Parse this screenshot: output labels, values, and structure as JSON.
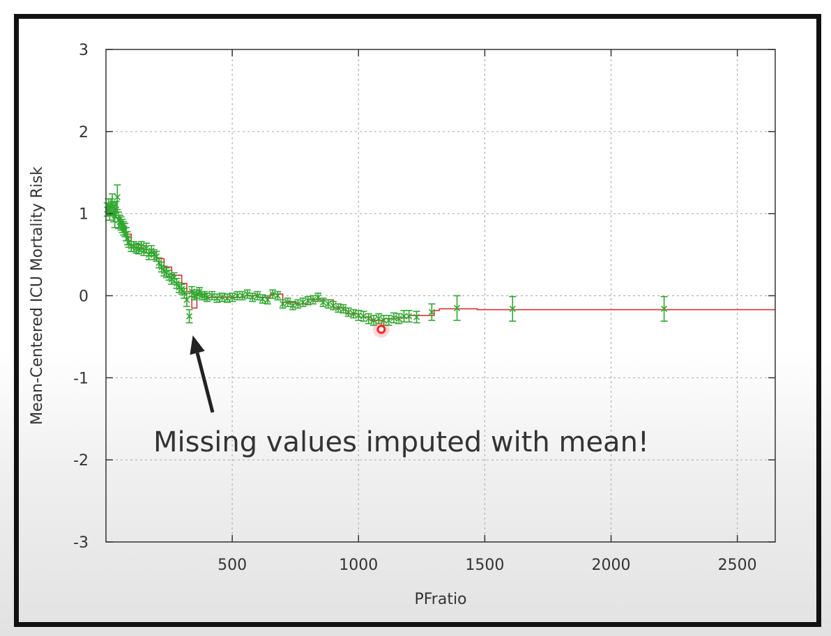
{
  "chart_data": {
    "type": "line",
    "title": "",
    "xlabel": "PFratio",
    "ylabel": "Mean-Centered ICU Mortality Risk",
    "xlim": [
      0,
      2650
    ],
    "ylim": [
      -3,
      3
    ],
    "x_ticks": [
      500,
      1000,
      1500,
      2000,
      2500
    ],
    "y_ticks": [
      3,
      2,
      1,
      0,
      -1,
      -2,
      -3
    ],
    "grid": true,
    "legend": "none",
    "colors": {
      "line": "#e03030",
      "points": "#2ea82e",
      "highlight": "#ff2020",
      "grid": "#b0b0b0",
      "axis": "#333333",
      "arrow": "#222222"
    },
    "series": [
      {
        "type": "line",
        "step": true,
        "x": [
          0,
          20,
          40,
          60,
          80,
          100,
          130,
          160,
          200,
          230,
          260,
          300,
          320,
          340,
          360,
          400,
          450,
          500,
          550,
          600,
          650,
          700,
          750,
          800,
          850,
          900,
          950,
          1000,
          1050,
          1080,
          1100,
          1150,
          1200,
          1250,
          1300,
          1320,
          1350,
          1400,
          1450,
          1470,
          1500,
          1600,
          1700,
          2000,
          2200,
          2400,
          2650
        ],
        "y": [
          1.05,
          1.02,
          0.95,
          0.85,
          0.75,
          0.62,
          0.57,
          0.52,
          0.45,
          0.35,
          0.25,
          0.15,
          0.05,
          -0.15,
          0.02,
          -0.02,
          -0.02,
          -0.02,
          0.0,
          -0.02,
          0.02,
          -0.08,
          -0.1,
          -0.05,
          -0.05,
          -0.15,
          -0.22,
          -0.26,
          -0.3,
          -0.3,
          -0.28,
          -0.27,
          -0.24,
          -0.24,
          -0.18,
          -0.16,
          -0.16,
          -0.16,
          -0.16,
          -0.17,
          -0.17,
          -0.17,
          -0.17,
          -0.17,
          -0.17,
          -0.17,
          -0.17
        ]
      },
      {
        "type": "errorbar",
        "x": [
          5,
          10,
          15,
          20,
          25,
          30,
          35,
          40,
          45,
          50,
          55,
          60,
          65,
          70,
          75,
          80,
          85,
          90,
          100,
          110,
          120,
          130,
          140,
          150,
          160,
          170,
          180,
          190,
          200,
          210,
          220,
          230,
          240,
          250,
          260,
          270,
          280,
          290,
          300,
          310,
          320,
          330,
          340,
          350,
          360,
          370,
          380,
          390,
          400,
          420,
          440,
          460,
          480,
          500,
          520,
          540,
          560,
          580,
          600,
          620,
          640,
          660,
          680,
          700,
          720,
          740,
          760,
          780,
          800,
          820,
          840,
          860,
          880,
          900,
          920,
          940,
          960,
          980,
          1000,
          1020,
          1040,
          1060,
          1080,
          1100,
          1120,
          1140,
          1160,
          1180,
          1200,
          1230,
          1290,
          1390,
          1610,
          2210
        ],
        "y": [
          1.05,
          1.1,
          1.0,
          1.08,
          1.12,
          1.0,
          0.98,
          1.05,
          1.2,
          0.92,
          0.9,
          0.88,
          0.85,
          0.82,
          0.8,
          0.75,
          0.7,
          0.65,
          0.6,
          0.6,
          0.58,
          0.57,
          0.6,
          0.55,
          0.58,
          0.5,
          0.55,
          0.5,
          0.48,
          0.4,
          0.35,
          0.3,
          0.28,
          0.25,
          0.2,
          0.22,
          0.15,
          0.1,
          0.08,
          0.03,
          -0.05,
          -0.25,
          0.05,
          0.0,
          0.02,
          0.05,
          0.0,
          0.0,
          -0.02,
          0.0,
          -0.03,
          -0.02,
          -0.03,
          -0.02,
          0.0,
          0.0,
          0.02,
          -0.02,
          0.0,
          -0.04,
          -0.05,
          0.02,
          0.0,
          -0.1,
          -0.08,
          -0.12,
          -0.1,
          -0.08,
          -0.06,
          -0.05,
          -0.02,
          -0.08,
          -0.1,
          -0.12,
          -0.15,
          -0.16,
          -0.2,
          -0.22,
          -0.24,
          -0.25,
          -0.28,
          -0.3,
          -0.28,
          -0.3,
          -0.3,
          -0.27,
          -0.28,
          -0.25,
          -0.25,
          -0.26,
          -0.2,
          -0.15,
          -0.16,
          -0.16
        ],
        "err": [
          0.08,
          0.08,
          0.08,
          0.1,
          0.12,
          0.1,
          0.15,
          0.1,
          0.15,
          0.1,
          0.08,
          0.08,
          0.08,
          0.08,
          0.08,
          0.08,
          0.08,
          0.06,
          0.06,
          0.06,
          0.06,
          0.06,
          0.06,
          0.06,
          0.06,
          0.06,
          0.06,
          0.06,
          0.06,
          0.06,
          0.06,
          0.06,
          0.06,
          0.06,
          0.06,
          0.06,
          0.06,
          0.06,
          0.06,
          0.06,
          0.08,
          0.08,
          0.06,
          0.05,
          0.05,
          0.05,
          0.05,
          0.05,
          0.05,
          0.05,
          0.05,
          0.05,
          0.05,
          0.05,
          0.05,
          0.05,
          0.05,
          0.05,
          0.05,
          0.05,
          0.05,
          0.05,
          0.05,
          0.05,
          0.05,
          0.05,
          0.05,
          0.05,
          0.05,
          0.05,
          0.05,
          0.05,
          0.05,
          0.05,
          0.05,
          0.05,
          0.05,
          0.05,
          0.06,
          0.06,
          0.06,
          0.06,
          0.06,
          0.06,
          0.06,
          0.06,
          0.06,
          0.07,
          0.07,
          0.07,
          0.1,
          0.15,
          0.15,
          0.15
        ]
      }
    ],
    "highlight_point": {
      "x": 1090,
      "y": -0.41
    },
    "annotations": [
      {
        "text": "Missing values imputed with mean!",
        "arrow_target": {
          "x": 330,
          "y": -0.5
        }
      }
    ]
  }
}
